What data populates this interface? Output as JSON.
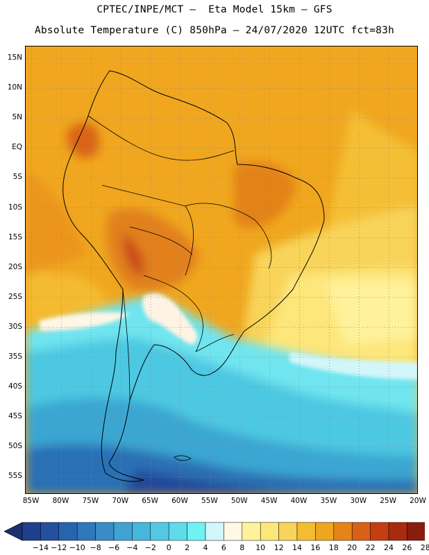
{
  "header": {
    "line1": "CPTEC/INPE/MCT –  Eta Model 15km – GFS",
    "line2": "Absolute Temperature (C) 850hPa – 24/07/2020 12UTC fct=83h"
  },
  "map": {
    "lon_range": [
      -86,
      -20
    ],
    "lat_range": [
      17,
      -58
    ],
    "lat_labels": [
      "15N",
      "10N",
      "5N",
      "EQ",
      "5S",
      "10S",
      "15S",
      "20S",
      "25S",
      "30S",
      "35S",
      "40S",
      "45S",
      "50S",
      "55S"
    ],
    "lat_values": [
      15,
      10,
      5,
      0,
      -5,
      -10,
      -15,
      -20,
      -25,
      -30,
      -35,
      -40,
      -45,
      -50,
      -55
    ],
    "lon_labels": [
      "85W",
      "80W",
      "75W",
      "70W",
      "65W",
      "60W",
      "55W",
      "50W",
      "45W",
      "40W",
      "35W",
      "30W",
      "25W",
      "20W"
    ],
    "lon_values": [
      -85,
      -80,
      -75,
      -70,
      -65,
      -60,
      -55,
      -50,
      -45,
      -40,
      -35,
      -30,
      -25,
      -20
    ]
  },
  "colorbar": {
    "labels": [
      "−14",
      "−12",
      "−10",
      "−8",
      "−6",
      "−4",
      "−2",
      "0",
      "2",
      "4",
      "6",
      "8",
      "10",
      "12",
      "14",
      "16",
      "18",
      "20",
      "22",
      "24",
      "26",
      "28"
    ],
    "colors": [
      "#1f3e8c",
      "#23509f",
      "#2864ad",
      "#2e78bb",
      "#3a8cc6",
      "#3fa2d2",
      "#46b6dc",
      "#52c8e4",
      "#5fdcec",
      "#6ff2f4",
      "#d2f6fa",
      "#fff8e6",
      "#fff29a",
      "#fde779",
      "#f9d45a",
      "#f3bd32",
      "#eea51f",
      "#e58418",
      "#d96016",
      "#c53e12",
      "#a82a10",
      "#8a1c0e",
      "#6e1710"
    ],
    "left_arrow_color": "#1c2f6e",
    "right_arrow_color": "#5e0f18"
  }
}
